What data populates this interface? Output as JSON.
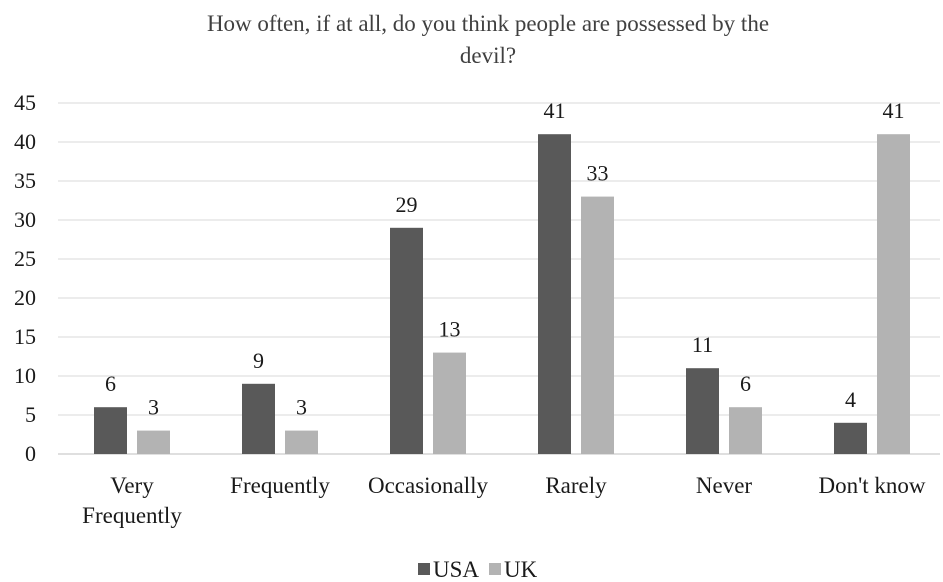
{
  "chart_data": {
    "type": "bar",
    "title_lines": [
      "How often, if at all, do you think people are possessed by the",
      "devil?"
    ],
    "categories": [
      [
        "Very",
        "Frequently"
      ],
      [
        "Frequently"
      ],
      [
        "Occasionally"
      ],
      [
        "Rarely"
      ],
      [
        "Never"
      ],
      [
        "Don't know"
      ]
    ],
    "series": [
      {
        "name": "USA",
        "color": "#595959",
        "values": [
          6,
          9,
          29,
          41,
          11,
          4
        ]
      },
      {
        "name": "UK",
        "color": "#b3b3b3",
        "values": [
          3,
          3,
          13,
          33,
          6,
          41
        ]
      }
    ],
    "yticks": [
      "0",
      "5",
      "10",
      "15",
      "20",
      "25",
      "30",
      "35",
      "40",
      "45"
    ],
    "ylim": [
      0,
      45
    ],
    "grid": true,
    "legend_position": "bottom-center"
  }
}
